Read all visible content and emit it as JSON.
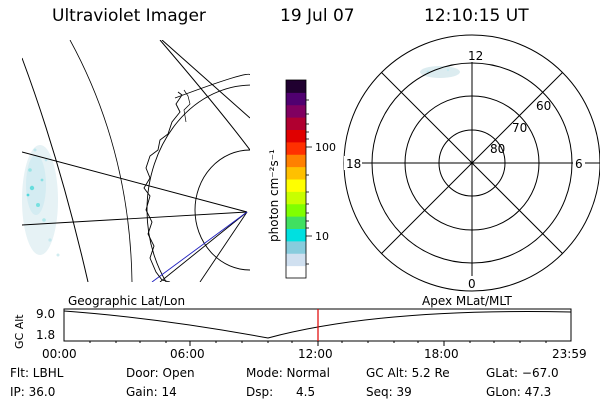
{
  "header": {
    "title": "Ultraviolet Imager",
    "date": "19 Jul 07",
    "time": "12:10:15 UT"
  },
  "colorbar": {
    "unit_label": "photon cm⁻²s⁻¹",
    "ticks": [
      "100",
      "10"
    ],
    "colors": [
      "#ffffff",
      "#d0e0f0",
      "#88ccdd",
      "#00e0e0",
      "#40e060",
      "#80ff00",
      "#c8ff00",
      "#ffff00",
      "#ffc000",
      "#ff8000",
      "#ff3000",
      "#e00000",
      "#b00030",
      "#800060",
      "#500070",
      "#200030"
    ]
  },
  "polar": {
    "mlt_labels": [
      "12",
      "18",
      "6",
      "0"
    ],
    "lat_labels": [
      "60",
      "70",
      "80"
    ]
  },
  "timeline": {
    "ylabel": "GC Alt",
    "yticks": [
      "9.0",
      "1.8"
    ],
    "left_title": "Geographic Lat/Lon",
    "right_title": "Apex  MLat/MLT",
    "xticks": [
      "00:00",
      "06:00",
      "12:00",
      "18:00",
      "23:59"
    ],
    "current_marker_color": "#e00000"
  },
  "info": {
    "filter": "Flt: LBHL",
    "ip": "IP: 36.0",
    "door": "Door: Open",
    "gain": "Gain: 14",
    "mode": "Mode: Normal",
    "dsp_label": "Dsp:",
    "dsp_value": "4.5",
    "gc_alt": "GC Alt: 5.2 Re",
    "seq": "Seq: 39",
    "glat": "GLat: −67.0",
    "glon": "GLon:  47.3"
  }
}
